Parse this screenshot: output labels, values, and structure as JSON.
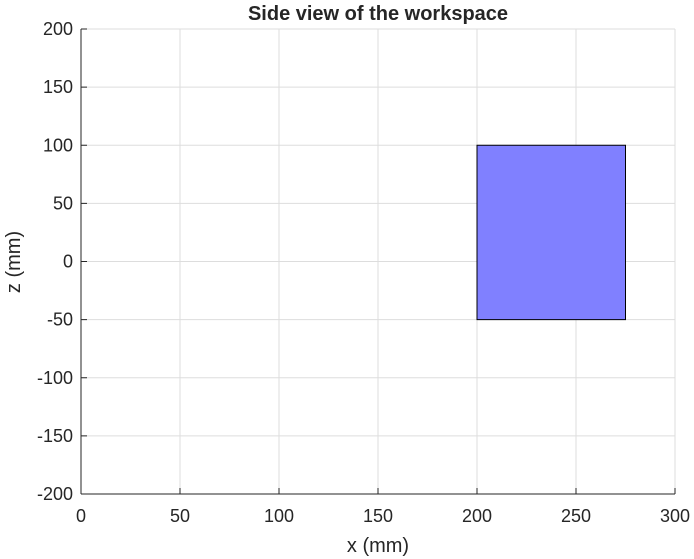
{
  "chart_data": {
    "type": "area",
    "title": "Side view of the workspace",
    "xlabel": "x (mm)",
    "ylabel": "z (mm)",
    "xlim": [
      0,
      300
    ],
    "ylim": [
      -200,
      200
    ],
    "xticks": [
      0,
      50,
      100,
      150,
      200,
      250,
      300
    ],
    "yticks": [
      -200,
      -150,
      -100,
      -50,
      0,
      50,
      100,
      150,
      200
    ],
    "grid": true,
    "shapes": [
      {
        "kind": "rectangle",
        "x": [
          200,
          275
        ],
        "z": [
          -50,
          100
        ],
        "fill_color": "#8080ff",
        "edge_color": "#000000"
      }
    ]
  }
}
